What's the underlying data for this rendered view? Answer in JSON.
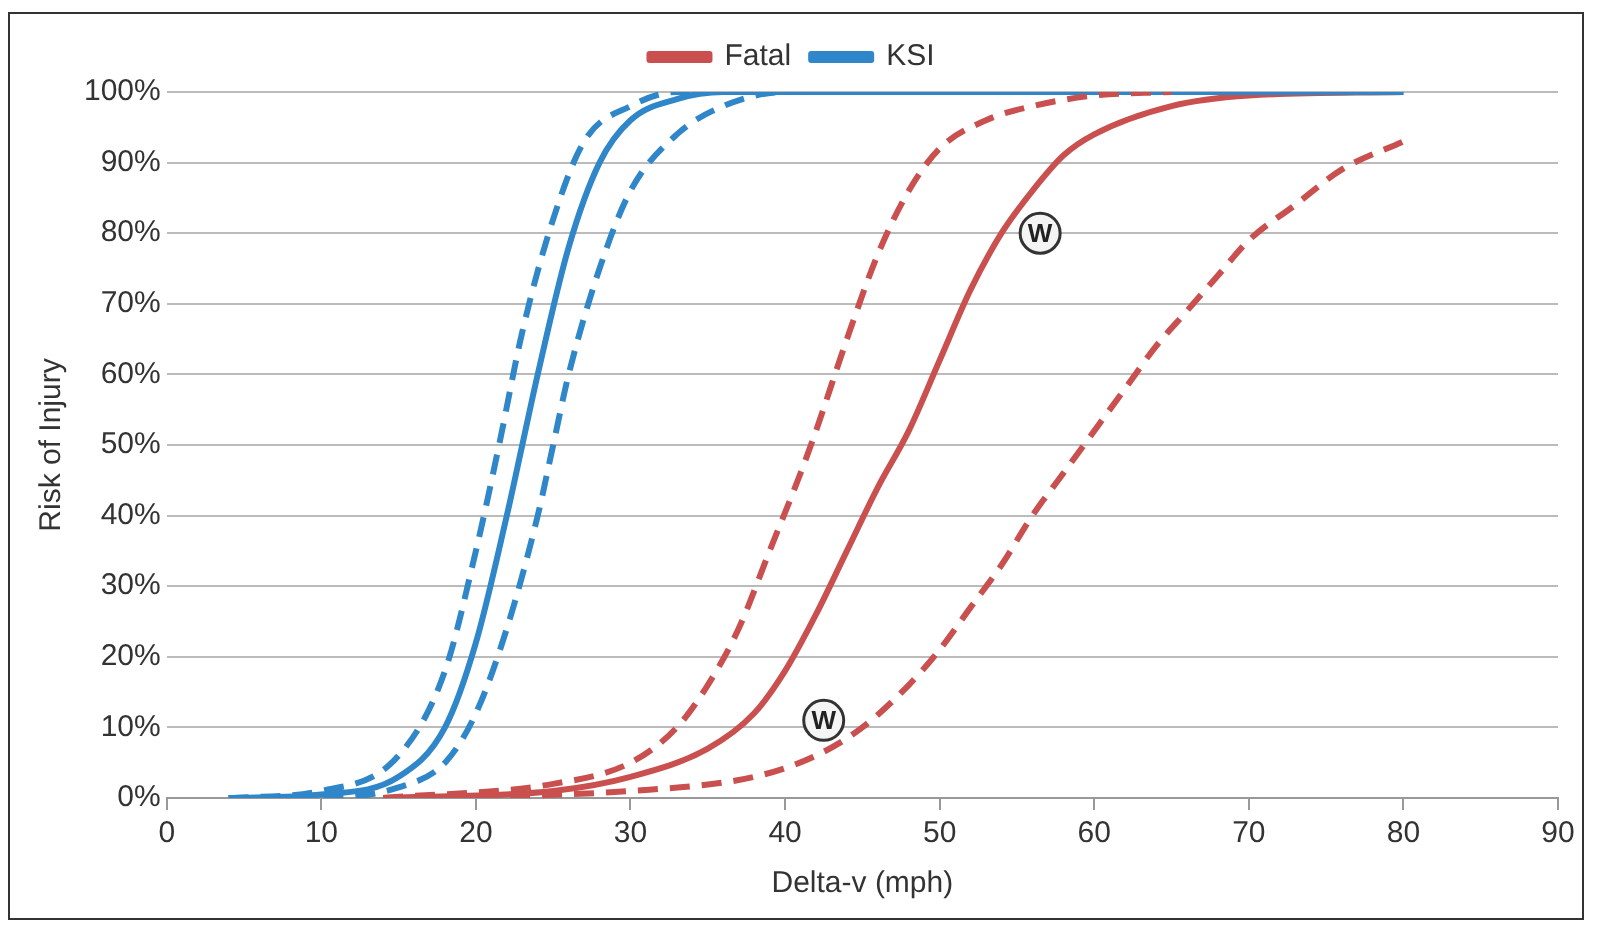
{
  "chart_data": {
    "type": "line",
    "xlabel": "Delta-v (mph)",
    "ylabel": "Risk of Injury",
    "xlim": [
      0,
      90
    ],
    "xticks": [
      0,
      10,
      20,
      30,
      40,
      50,
      60,
      70,
      80,
      90
    ],
    "ylim": [
      0,
      100
    ],
    "yticks": [
      {
        "value": 0,
        "label": "0%"
      },
      {
        "value": 10,
        "label": "10%"
      },
      {
        "value": 20,
        "label": "20%"
      },
      {
        "value": 30,
        "label": "30%"
      },
      {
        "value": 40,
        "label": "40%"
      },
      {
        "value": 50,
        "label": "50%"
      },
      {
        "value": 60,
        "label": "60%"
      },
      {
        "value": 70,
        "label": "70%"
      },
      {
        "value": 80,
        "label": "80%"
      },
      {
        "value": 90,
        "label": "90%"
      },
      {
        "value": 100,
        "label": "100%"
      }
    ],
    "grid": "y",
    "legend": "top",
    "marker": "none",
    "series": [
      {
        "name": "Fatal",
        "color": "#c9504f",
        "line_style": "solid",
        "x": [
          14,
          25,
          30,
          35,
          38,
          40,
          42,
          44,
          46,
          48,
          50,
          52,
          54,
          56,
          58,
          60,
          65,
          70,
          80
        ],
        "values": [
          0,
          1,
          3,
          7,
          12,
          18,
          26,
          35,
          44,
          52,
          62,
          72,
          80,
          86,
          91,
          94,
          98,
          99.5,
          100
        ]
      },
      {
        "name": "KSI",
        "color": "#2f86c8",
        "line_style": "solid",
        "x": [
          4,
          10,
          15,
          18,
          20,
          22,
          23,
          24,
          26,
          28,
          30,
          33,
          36,
          80
        ],
        "values": [
          0,
          0.5,
          3,
          10,
          22,
          40,
          50,
          60,
          78,
          90,
          96,
          99,
          100,
          100
        ]
      },
      {
        "color": "#c9504f",
        "line_style": "dashed",
        "x": [
          14,
          25,
          30,
          33,
          35,
          37,
          39,
          41,
          42,
          44,
          46,
          48,
          50,
          53,
          56,
          60,
          65
        ],
        "values": [
          0,
          2,
          5,
          10,
          16,
          24,
          35,
          46,
          52,
          65,
          77,
          86,
          92,
          96,
          98,
          99.5,
          100
        ]
      },
      {
        "color": "#c9504f",
        "line_style": "dashed",
        "x": [
          16,
          30,
          38,
          42,
          45,
          48,
          50,
          52,
          54,
          56,
          58,
          60,
          62,
          64,
          66,
          68,
          70,
          73,
          76,
          80
        ],
        "values": [
          0,
          1,
          3,
          6,
          10,
          16,
          21,
          27,
          33,
          40,
          46,
          52,
          58,
          64,
          69,
          74,
          79,
          84,
          89,
          93
        ]
      },
      {
        "color": "#2f86c8",
        "line_style": "dashed",
        "x": [
          4,
          10,
          15,
          18,
          20,
          21.5,
          23,
          25,
          27,
          30,
          33,
          35
        ],
        "values": [
          0,
          1,
          6,
          18,
          35,
          50,
          66,
          82,
          93,
          98,
          100,
          100
        ]
      },
      {
        "color": "#2f86c8",
        "line_style": "dashed",
        "x": [
          6,
          10,
          15,
          18,
          20,
          22,
          24,
          25,
          26,
          28,
          30,
          33,
          36,
          40,
          42
        ],
        "values": [
          0,
          0,
          1.5,
          5,
          12,
          24,
          40,
          50,
          60,
          75,
          86,
          94,
          98,
          100,
          100
        ]
      }
    ],
    "annotations": [
      {
        "text": "W",
        "x": 56.5,
        "y": 80
      },
      {
        "text": "W",
        "x": 42.5,
        "y": 11
      }
    ]
  }
}
